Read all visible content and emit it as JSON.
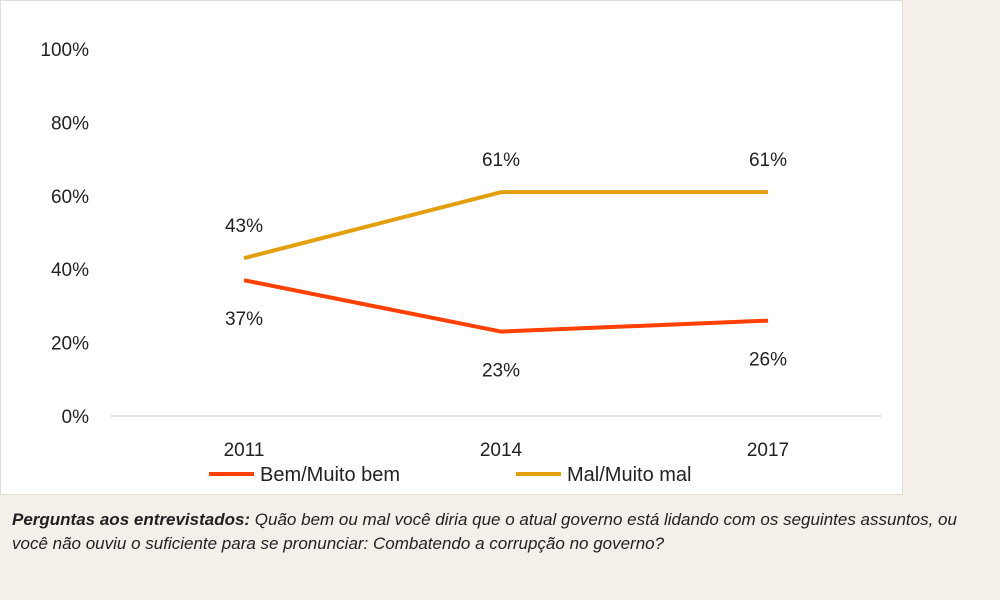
{
  "chart_data": {
    "type": "line",
    "x": [
      "2011",
      "2014",
      "2017"
    ],
    "ylim": [
      0,
      100
    ],
    "yticks": [
      "0%",
      "20%",
      "40%",
      "60%",
      "80%",
      "100%"
    ],
    "grid": false,
    "legend_position": "bottom",
    "series": [
      {
        "name": "Bem/Muito bem",
        "values": [
          37,
          23,
          26
        ],
        "labels": [
          "37%",
          "23%",
          "26%"
        ],
        "color": "#ff4000"
      },
      {
        "name": "Mal/Muito mal",
        "values": [
          43,
          61,
          61
        ],
        "labels": [
          "43%",
          "61%",
          "61%"
        ],
        "color": "#e3a00c"
      }
    ]
  },
  "caption": {
    "lead": "Perguntas aos entrevistados:",
    "text": " Quão bem ou mal você diria que o atual governo está lidando com os seguintes assuntos, ou você não ouviu o suficiente para se pronunciar: Combatendo a corrupção no governo?"
  }
}
